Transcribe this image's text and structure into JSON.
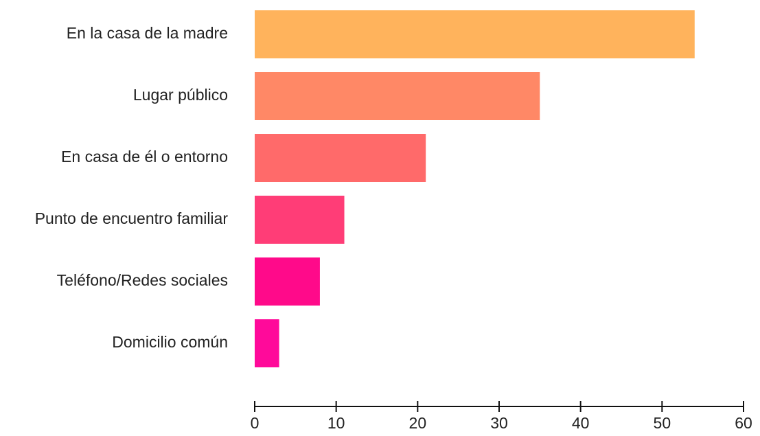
{
  "chart_data": {
    "type": "bar",
    "orientation": "horizontal",
    "categories": [
      "En la casa de la madre",
      "Lugar público",
      "En casa de él o entorno",
      "Punto de encuentro familiar",
      "Teléfono/Redes sociales",
      "Domicilio común"
    ],
    "values": [
      54,
      35,
      21,
      11,
      8,
      3
    ],
    "colors": [
      "#ffb35c",
      "#ff8866",
      "#ff6a6a",
      "#ff3d77",
      "#ff0a8a",
      "#ff0a9a"
    ],
    "xlim": [
      0,
      60
    ],
    "xticks": [
      0,
      10,
      20,
      30,
      40,
      50,
      60
    ],
    "grid": false
  }
}
